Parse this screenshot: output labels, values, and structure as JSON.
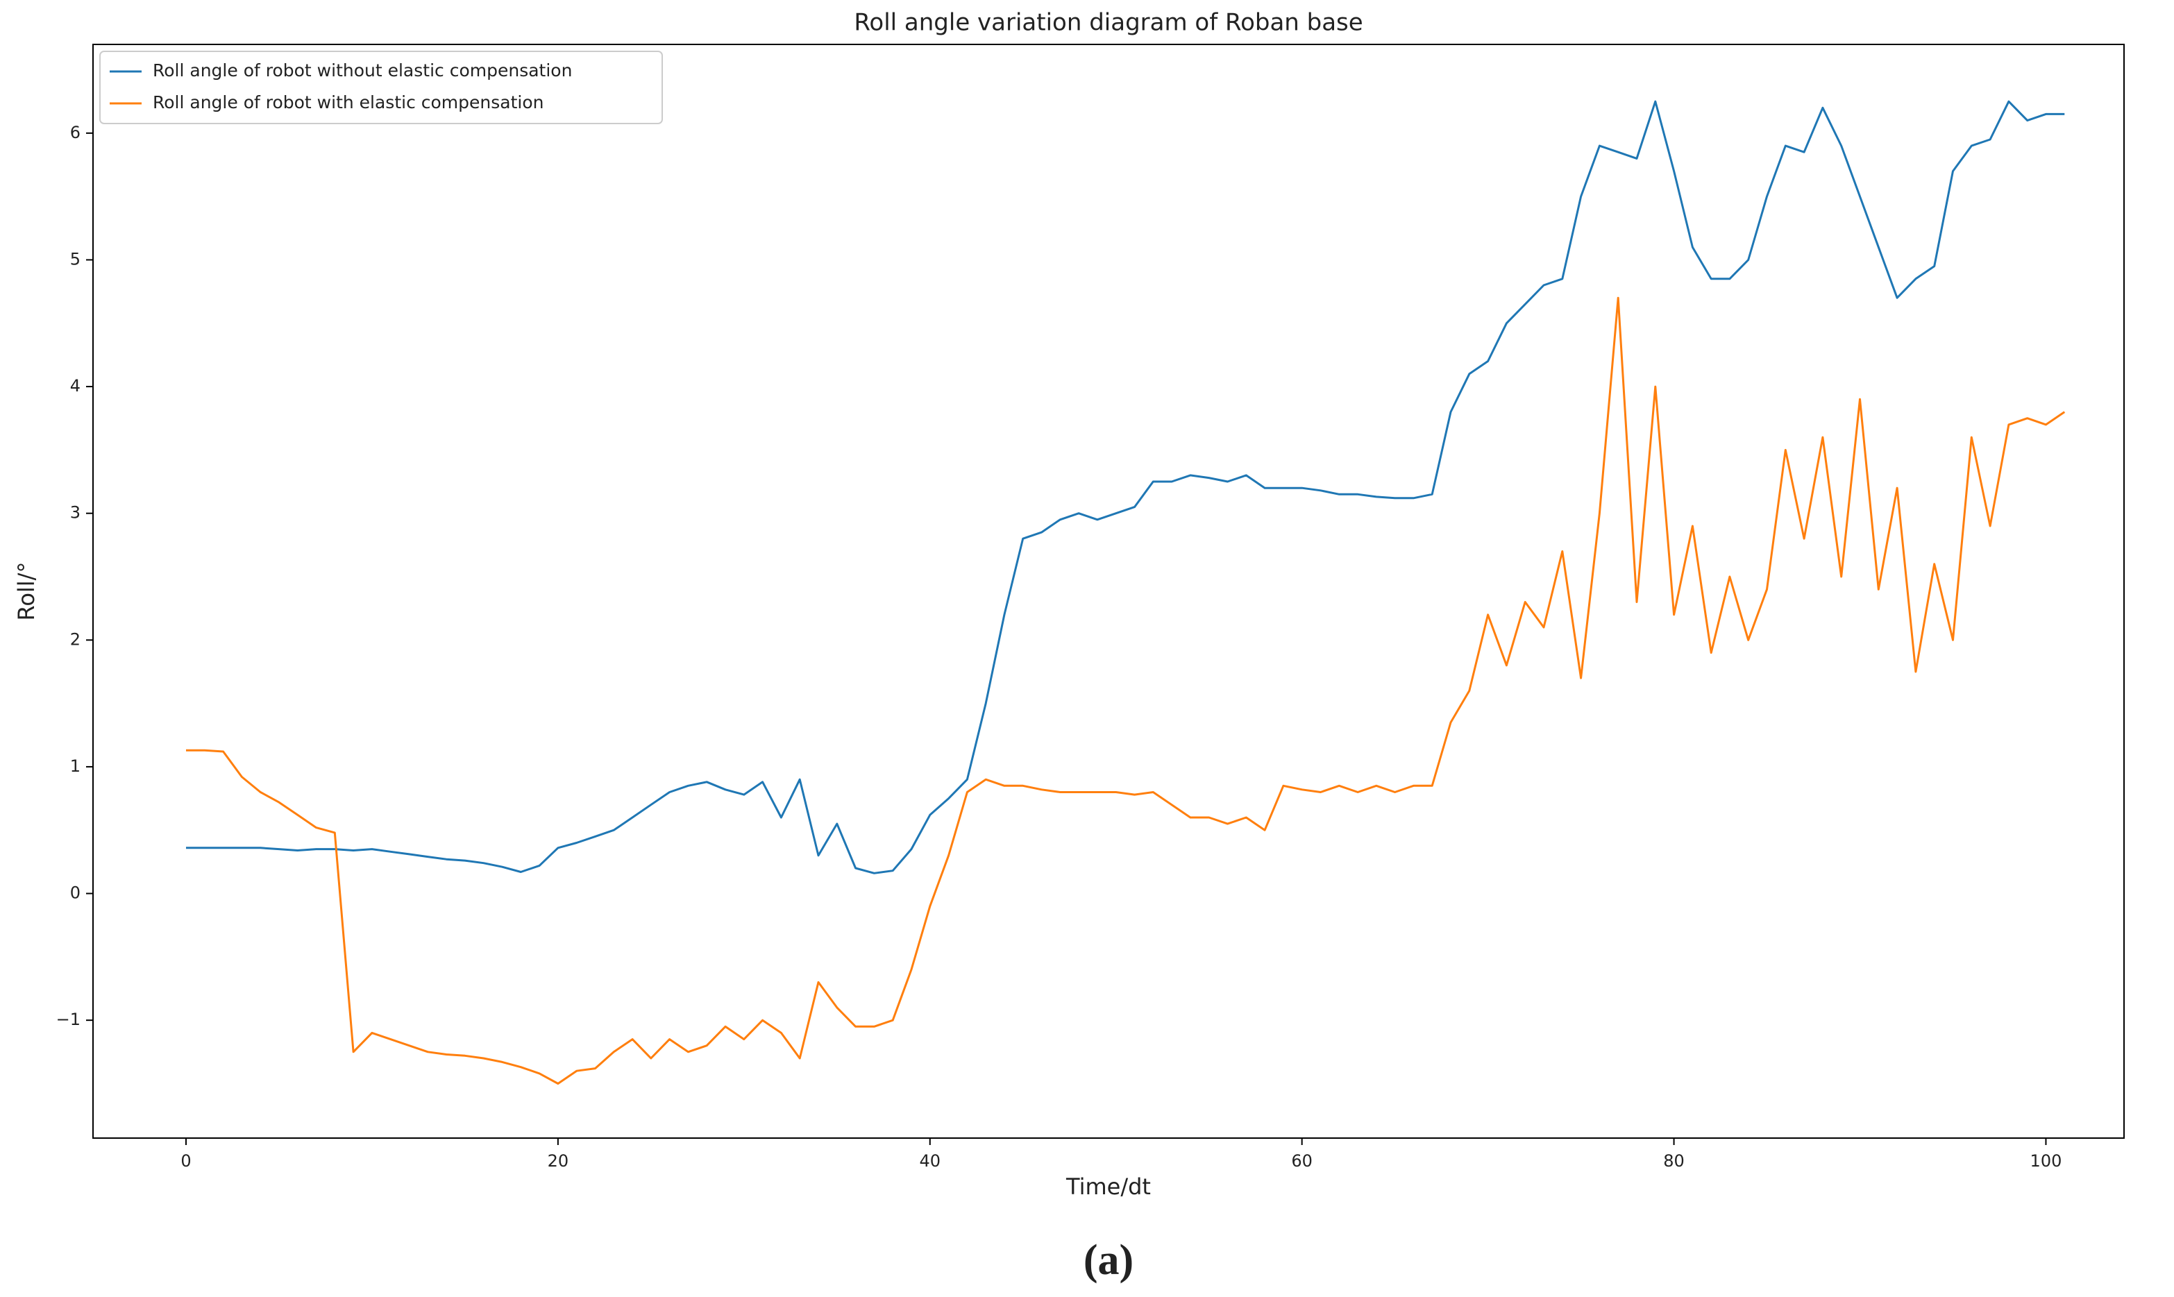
{
  "chart_data": {
    "type": "line",
    "title": "Roll angle variation diagram of Roban base",
    "x_label": "Time/dt",
    "y_label": "Roll/°",
    "caption": "(a)",
    "legend": "upper left",
    "grid": false,
    "xlim": [
      -5,
      104.2
    ],
    "ylim": [
      -1.93,
      6.7
    ],
    "xticks": [
      0,
      20,
      40,
      60,
      80,
      100
    ],
    "yticks": [
      {
        "value": -1,
        "label": "−1"
      },
      0,
      1,
      2,
      3,
      4,
      5,
      6
    ],
    "x": [
      0,
      1,
      2,
      3,
      4,
      5,
      6,
      7,
      8,
      9,
      10,
      11,
      12,
      13,
      14,
      15,
      16,
      17,
      18,
      19,
      20,
      21,
      22,
      23,
      24,
      25,
      26,
      27,
      28,
      29,
      30,
      31,
      32,
      33,
      34,
      35,
      36,
      37,
      38,
      39,
      40,
      41,
      42,
      43,
      44,
      45,
      46,
      47,
      48,
      49,
      50,
      51,
      52,
      53,
      54,
      55,
      56,
      57,
      58,
      59,
      60,
      61,
      62,
      63,
      64,
      65,
      66,
      67,
      68,
      69,
      70,
      71,
      72,
      73,
      74,
      75,
      76,
      77,
      78,
      79,
      80,
      81,
      82,
      83,
      84,
      85,
      86,
      87,
      88,
      89,
      90,
      91,
      92,
      93,
      94,
      95,
      96,
      97,
      98,
      99,
      100,
      101
    ],
    "series": [
      {
        "name": "Roll angle of robot without elastic compensation",
        "color": "#1f77b4",
        "values": [
          0.36,
          0.36,
          0.36,
          0.36,
          0.36,
          0.35,
          0.34,
          0.35,
          0.35,
          0.34,
          0.35,
          0.33,
          0.31,
          0.29,
          0.27,
          0.26,
          0.24,
          0.21,
          0.17,
          0.22,
          0.36,
          0.4,
          0.45,
          0.5,
          0.6,
          0.7,
          0.8,
          0.85,
          0.88,
          0.82,
          0.78,
          0.88,
          0.6,
          0.9,
          0.3,
          0.55,
          0.2,
          0.16,
          0.18,
          0.35,
          0.62,
          0.75,
          0.9,
          1.5,
          2.2,
          2.8,
          2.85,
          2.95,
          3.0,
          2.95,
          3.0,
          3.05,
          3.25,
          3.25,
          3.3,
          3.28,
          3.25,
          3.3,
          3.2,
          3.2,
          3.2,
          3.18,
          3.15,
          3.15,
          3.13,
          3.12,
          3.12,
          3.15,
          3.8,
          4.1,
          4.2,
          4.5,
          4.65,
          4.8,
          4.85,
          5.5,
          5.9,
          5.85,
          5.8,
          6.25,
          5.7,
          5.1,
          4.85,
          4.85,
          5.0,
          5.5,
          5.9,
          5.85,
          6.2,
          5.9,
          5.5,
          5.1,
          4.7,
          4.85,
          4.95,
          5.7,
          5.9,
          5.95,
          6.25,
          6.1,
          6.15,
          6.15
        ]
      },
      {
        "name": "Roll angle of robot with elastic compensation",
        "color": "#ff7f0e",
        "values": [
          1.13,
          1.13,
          1.12,
          0.92,
          0.8,
          0.72,
          0.62,
          0.52,
          0.48,
          -1.25,
          -1.1,
          -1.15,
          -1.2,
          -1.25,
          -1.27,
          -1.28,
          -1.3,
          -1.33,
          -1.37,
          -1.42,
          -1.5,
          -1.4,
          -1.38,
          -1.25,
          -1.15,
          -1.3,
          -1.15,
          -1.25,
          -1.2,
          -1.05,
          -1.15,
          -1.0,
          -1.1,
          -1.3,
          -0.7,
          -0.9,
          -1.05,
          -1.05,
          -1.0,
          -0.6,
          -0.1,
          0.3,
          0.8,
          0.9,
          0.85,
          0.85,
          0.82,
          0.8,
          0.8,
          0.8,
          0.8,
          0.78,
          0.8,
          0.7,
          0.6,
          0.6,
          0.55,
          0.6,
          0.5,
          0.85,
          0.82,
          0.8,
          0.85,
          0.8,
          0.85,
          0.8,
          0.85,
          0.85,
          1.35,
          1.6,
          2.2,
          1.8,
          2.3,
          2.1,
          2.7,
          1.7,
          3.0,
          4.7,
          2.3,
          4.0,
          2.2,
          2.9,
          1.9,
          2.5,
          2.0,
          2.4,
          3.5,
          2.8,
          3.6,
          2.5,
          3.9,
          2.4,
          3.2,
          1.75,
          2.6,
          2.0,
          3.6,
          2.9,
          3.7,
          3.75,
          3.7,
          3.8
        ]
      }
    ]
  }
}
